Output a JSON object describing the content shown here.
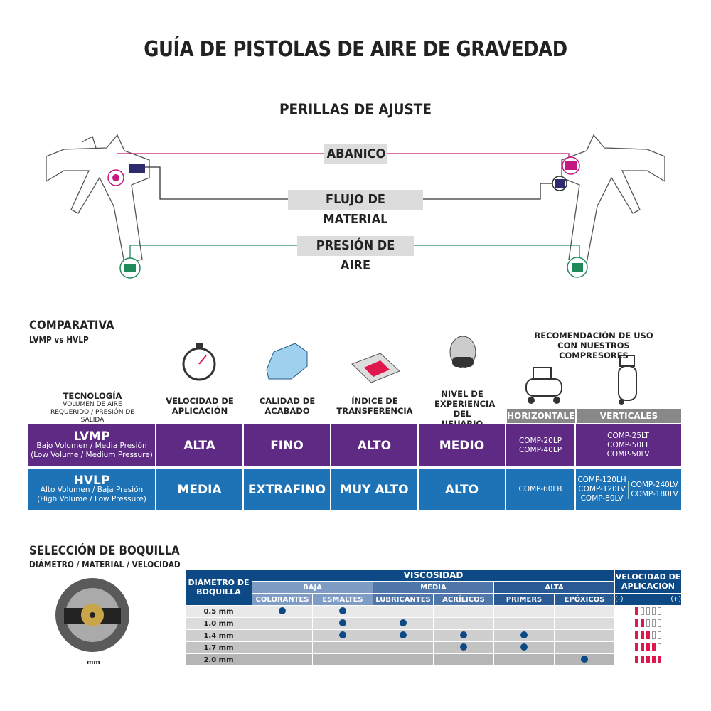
{
  "title": "GUÍA DE PISTOLAS DE AIRE DE GRAVEDAD",
  "knobs": {
    "heading": "PERILLAS DE AJUSTE",
    "fan": "ABANICO",
    "flow": "FLUJO DE MATERIAL",
    "air": "PRESIÓN DE AIRE",
    "colors": {
      "fan": "#c2187f",
      "flow": "#333333",
      "air": "#1e8a5a"
    }
  },
  "comparison": {
    "heading": "COMPARATIVA",
    "subheading": "LVMP vs HVLP",
    "tech_header": "TECNOLOGÍA",
    "tech_sub": "VOLUMEN DE AIRE REQUERIDO / PRESIÓN DE SALIDA",
    "columns": [
      "VELOCIDAD DE APLICACIÓN",
      "CALIDAD DE ACABADO",
      "ÍNDICE DE TRANSFERENCIA",
      "NIVEL DE EXPERIENCIA DEL USUARIO"
    ],
    "recommendation": "RECOMENDACIÓN DE USO CON NUESTROS COMPRESORES",
    "horizontal": "HORIZONTALES",
    "vertical": "VERTICALES",
    "rows": [
      {
        "name": "LVMP",
        "desc": "Bajo Volumen / Media Presión",
        "desc_en": "(Low Volume / Medium Pressure)",
        "values": [
          "ALTA",
          "FINO",
          "ALTO",
          "MEDIO"
        ],
        "horizontal": "COMP-20LP\nCOMP-40LP",
        "vertical": "COMP-25LT\nCOMP-50LT\nCOMP-50LV",
        "vertical2": "",
        "color": "#5e2a84"
      },
      {
        "name": "HVLP",
        "desc": "Alto Volumen / Baja Presión",
        "desc_en": "(High Volume / Low Pressure)",
        "values": [
          "MEDIA",
          "EXTRAFINO",
          "MUY ALTO",
          "ALTO"
        ],
        "horizontal": "COMP-60LB",
        "vertical": "COMP-120LH\nCOMP-120LV\nCOMP-80LV",
        "vertical2": "COMP-240LV\nCOMP-180LV",
        "color": "#1e73b7"
      }
    ]
  },
  "nozzle": {
    "heading": "SELECCIÓN DE BOQUILLA",
    "subheading": "DIÁMETRO / MATERIAL / VELOCIDAD",
    "unit_label": "mm",
    "diam_header": "DIÁMETRO DE BOQUILLA",
    "visc_header": "VISCOSIDAD",
    "speed_header": "VELOCIDAD DE APLICACIÓN",
    "minus": "(–)",
    "plus": "(+)",
    "groups": [
      "BAJA",
      "MEDIA",
      "ALTA"
    ],
    "materials": [
      "COLORANTES",
      "ESMALTES",
      "LUBRICANTES",
      "ACRÍLICOS",
      "PRIMERS",
      "EPÓXICOS"
    ],
    "rows": [
      {
        "size": "0.5 mm",
        "marks": [
          1,
          1,
          0,
          0,
          0,
          0
        ],
        "speed": 1
      },
      {
        "size": "1.0 mm",
        "marks": [
          0,
          1,
          1,
          0,
          0,
          0
        ],
        "speed": 2
      },
      {
        "size": "1.4 mm",
        "marks": [
          0,
          1,
          1,
          1,
          1,
          0
        ],
        "speed": 3
      },
      {
        "size": "1.7 mm",
        "marks": [
          0,
          0,
          0,
          1,
          1,
          0
        ],
        "speed": 4
      },
      {
        "size": "2.0 mm",
        "marks": [
          0,
          0,
          0,
          0,
          0,
          1
        ],
        "speed": 5
      }
    ],
    "speed_max": 5
  }
}
